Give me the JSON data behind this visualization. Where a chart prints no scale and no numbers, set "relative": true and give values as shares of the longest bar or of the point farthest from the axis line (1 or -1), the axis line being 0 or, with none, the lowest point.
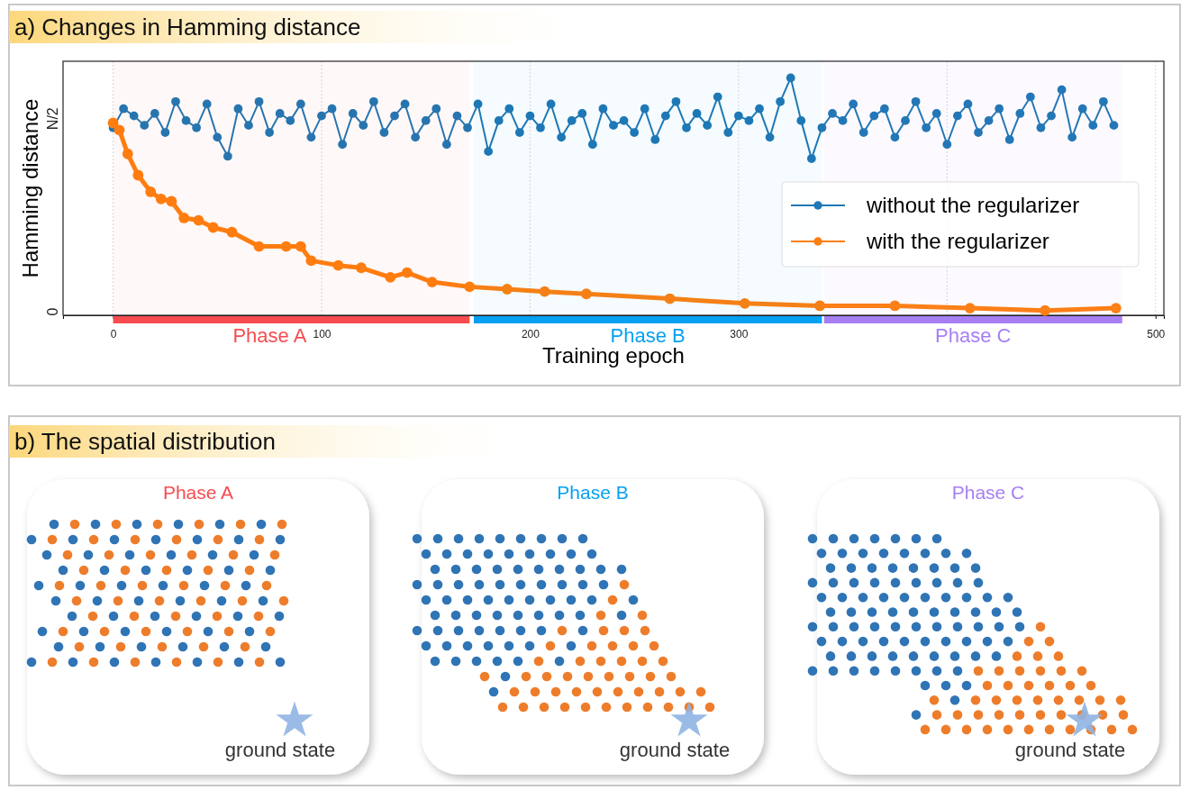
{
  "chart_data": [
    {
      "type": "line",
      "title": "a) Changes in Hamming distance",
      "xlabel": "Training epoch",
      "ylabel": "Hamming distance",
      "xlim": [
        -24,
        504
      ],
      "xticks": [
        0,
        100,
        200,
        300,
        {
          "value": 400,
          "label": null
        },
        500
      ],
      "relative": true,
      "annotations": [
        "0",
        "N/2"
      ],
      "grid": "x",
      "legend": "right",
      "marker": "circle",
      "line_style": "solid",
      "series": [
        {
          "name": "without the regularizer",
          "color": "#1f77b4",
          "x": [
            0,
            5,
            10,
            15,
            20,
            25,
            30,
            35,
            40,
            45,
            50,
            55,
            60,
            65,
            70,
            75,
            80,
            85,
            90,
            95,
            100,
            105,
            110,
            115,
            120,
            125,
            130,
            135,
            140,
            145,
            150,
            155,
            160,
            165,
            170,
            175,
            180,
            185,
            190,
            195,
            200,
            205,
            210,
            215,
            220,
            225,
            230,
            235,
            240,
            245,
            250,
            255,
            260,
            265,
            270,
            275,
            280,
            285,
            290,
            295,
            300,
            305,
            310,
            315,
            320,
            325,
            330,
            335,
            340,
            345,
            350,
            355,
            360,
            365,
            370,
            375,
            380,
            385,
            390,
            395,
            400,
            405,
            410,
            415,
            420,
            425,
            430,
            435,
            440,
            445,
            450,
            455,
            460,
            465,
            470,
            475,
            480
          ],
          "values": [
            0.79,
            0.87,
            0.84,
            0.8,
            0.85,
            0.77,
            0.9,
            0.82,
            0.79,
            0.89,
            0.75,
            0.67,
            0.87,
            0.8,
            0.9,
            0.77,
            0.85,
            0.82,
            0.89,
            0.75,
            0.84,
            0.87,
            0.72,
            0.85,
            0.8,
            0.9,
            0.77,
            0.84,
            0.89,
            0.75,
            0.82,
            0.87,
            0.72,
            0.84,
            0.79,
            0.89,
            0.69,
            0.82,
            0.87,
            0.77,
            0.84,
            0.79,
            0.89,
            0.75,
            0.82,
            0.85,
            0.72,
            0.87,
            0.8,
            0.82,
            0.77,
            0.87,
            0.74,
            0.84,
            0.9,
            0.79,
            0.85,
            0.8,
            0.92,
            0.77,
            0.84,
            0.82,
            0.87,
            0.75,
            0.9,
            1,
            0.82,
            0.66,
            0.79,
            0.85,
            0.82,
            0.89,
            0.77,
            0.84,
            0.87,
            0.75,
            0.82,
            0.9,
            0.79,
            0.85,
            0.72,
            0.84,
            0.89,
            0.77,
            0.82,
            0.87,
            0.74,
            0.85,
            0.92,
            0.79,
            0.84,
            0.95,
            0.75,
            0.87,
            0.8,
            0.9,
            0.8
          ]
        },
        {
          "name": "with the regularizer",
          "color": "#ff7f0e",
          "x": [
            0,
            3,
            7,
            12,
            18,
            23,
            28,
            34,
            41,
            48,
            57,
            70,
            83,
            90,
            95,
            108,
            119,
            133,
            141,
            153,
            171,
            189,
            207,
            227,
            267,
            303,
            339,
            375,
            411,
            447,
            481
          ],
          "values": [
            0.81,
            0.78,
            0.68,
            0.59,
            0.52,
            0.49,
            0.48,
            0.41,
            0.4,
            0.37,
            0.35,
            0.29,
            0.29,
            0.29,
            0.23,
            0.21,
            0.2,
            0.16,
            0.18,
            0.14,
            0.12,
            0.11,
            0.1,
            0.09,
            0.07,
            0.05,
            0.04,
            0.04,
            0.03,
            0.02,
            0.03
          ]
        }
      ],
      "bands": [
        {
          "axis": "x",
          "from": 0,
          "to": 171,
          "label": "Phase A",
          "color": "#f64c50"
        },
        {
          "axis": "x",
          "from": 173,
          "to": 340,
          "label": "Phase B",
          "color": "#05a0f2"
        },
        {
          "axis": "x",
          "from": 341,
          "to": 484,
          "label": "Phase C",
          "color": "#a67ff5"
        }
      ]
    },
    {
      "type": "other",
      "title": "b) The spatial distribution"
    },
    {
      "type": "other",
      "title": "Phase A",
      "annotations": [
        "ground state"
      ]
    },
    {
      "type": "other",
      "title": "Phase B",
      "annotations": [
        "ground state"
      ]
    },
    {
      "type": "other",
      "title": "Phase C",
      "annotations": [
        "ground state"
      ]
    }
  ]
}
